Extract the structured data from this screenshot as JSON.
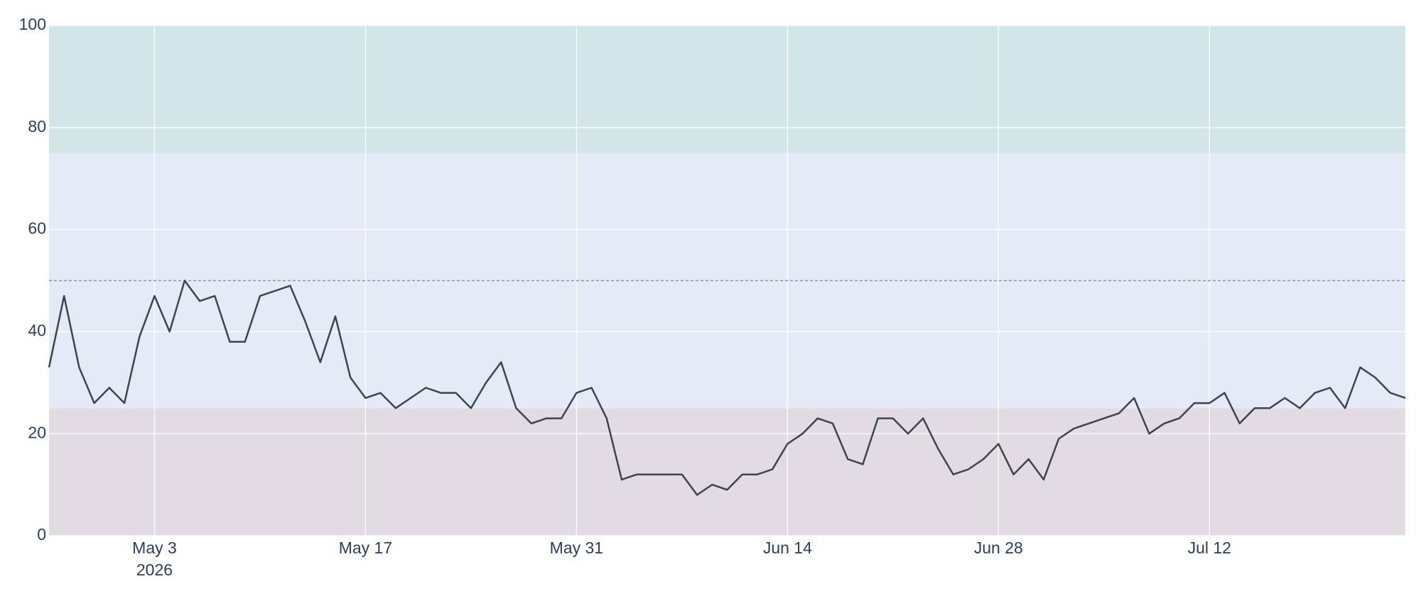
{
  "chart_data": {
    "type": "line",
    "x": [
      "2026-04-26",
      "2026-04-27",
      "2026-04-28",
      "2026-04-29",
      "2026-04-30",
      "2026-05-01",
      "2026-05-02",
      "2026-05-03",
      "2026-05-04",
      "2026-05-05",
      "2026-05-06",
      "2026-05-07",
      "2026-05-08",
      "2026-05-09",
      "2026-05-10",
      "2026-05-11",
      "2026-05-12",
      "2026-05-13",
      "2026-05-14",
      "2026-05-15",
      "2026-05-16",
      "2026-05-17",
      "2026-05-18",
      "2026-05-19",
      "2026-05-20",
      "2026-05-21",
      "2026-05-22",
      "2026-05-23",
      "2026-05-24",
      "2026-05-25",
      "2026-05-26",
      "2026-05-27",
      "2026-05-28",
      "2026-05-29",
      "2026-05-30",
      "2026-05-31",
      "2026-06-01",
      "2026-06-02",
      "2026-06-03",
      "2026-06-04",
      "2026-06-05",
      "2026-06-06",
      "2026-06-07",
      "2026-06-08",
      "2026-06-09",
      "2026-06-10",
      "2026-06-11",
      "2026-06-12",
      "2026-06-13",
      "2026-06-14",
      "2026-06-15",
      "2026-06-16",
      "2026-06-17",
      "2026-06-18",
      "2026-06-19",
      "2026-06-20",
      "2026-06-21",
      "2026-06-22",
      "2026-06-23",
      "2026-06-24",
      "2026-06-25",
      "2026-06-26",
      "2026-06-27",
      "2026-06-28",
      "2026-06-29",
      "2026-06-30",
      "2026-07-01",
      "2026-07-02",
      "2026-07-03",
      "2026-07-04",
      "2026-07-05",
      "2026-07-06",
      "2026-07-07",
      "2026-07-08",
      "2026-07-09",
      "2026-07-10",
      "2026-07-11",
      "2026-07-12",
      "2026-07-13",
      "2026-07-14",
      "2026-07-15",
      "2026-07-16",
      "2026-07-17",
      "2026-07-18",
      "2026-07-19",
      "2026-07-20",
      "2026-07-21",
      "2026-07-22",
      "2026-07-23",
      "2026-07-24",
      "2026-07-25"
    ],
    "values": [
      33,
      47,
      33,
      26,
      29,
      26,
      39,
      47,
      40,
      50,
      46,
      47,
      38,
      38,
      47,
      48,
      49,
      42,
      34,
      43,
      31,
      27,
      28,
      25,
      27,
      29,
      28,
      28,
      25,
      30,
      34,
      25,
      22,
      23,
      23,
      28,
      29,
      23,
      11,
      12,
      12,
      12,
      12,
      8,
      10,
      9,
      12,
      12,
      13,
      18,
      20,
      23,
      22,
      15,
      14,
      23,
      23,
      20,
      23,
      17,
      12,
      13,
      15,
      18,
      12,
      15,
      11,
      19,
      21,
      22,
      23,
      24,
      27,
      20,
      22,
      23,
      26,
      26,
      28,
      22,
      25,
      25,
      27,
      25,
      28,
      29,
      25,
      33,
      31,
      28,
      27
    ],
    "color": "#3d4451",
    "xlim": [
      "2026-04-26",
      "2026-07-25"
    ],
    "xticks": [
      {
        "value": "2026-05-03",
        "label": "May 3"
      },
      {
        "value": "2026-05-17",
        "label": "May 17"
      },
      {
        "value": "2026-05-31",
        "label": "May 31"
      },
      {
        "value": "2026-06-14",
        "label": "Jun 14"
      },
      {
        "value": "2026-06-28",
        "label": "Jun 28"
      },
      {
        "value": "2026-07-12",
        "label": "Jul 12"
      }
    ],
    "x_year": "2026",
    "ylim": [
      0,
      100
    ],
    "yticks": [
      0,
      20,
      40,
      60,
      80,
      100
    ],
    "grid": true,
    "bands": [
      {
        "range": [
          75,
          100
        ],
        "color": "#d2e5e7"
      },
      {
        "range": [
          25,
          75
        ],
        "color": "#e5ebf6"
      },
      {
        "range": [
          0,
          25
        ],
        "color": "#e2dbe4"
      }
    ],
    "reference_line": 50
  }
}
